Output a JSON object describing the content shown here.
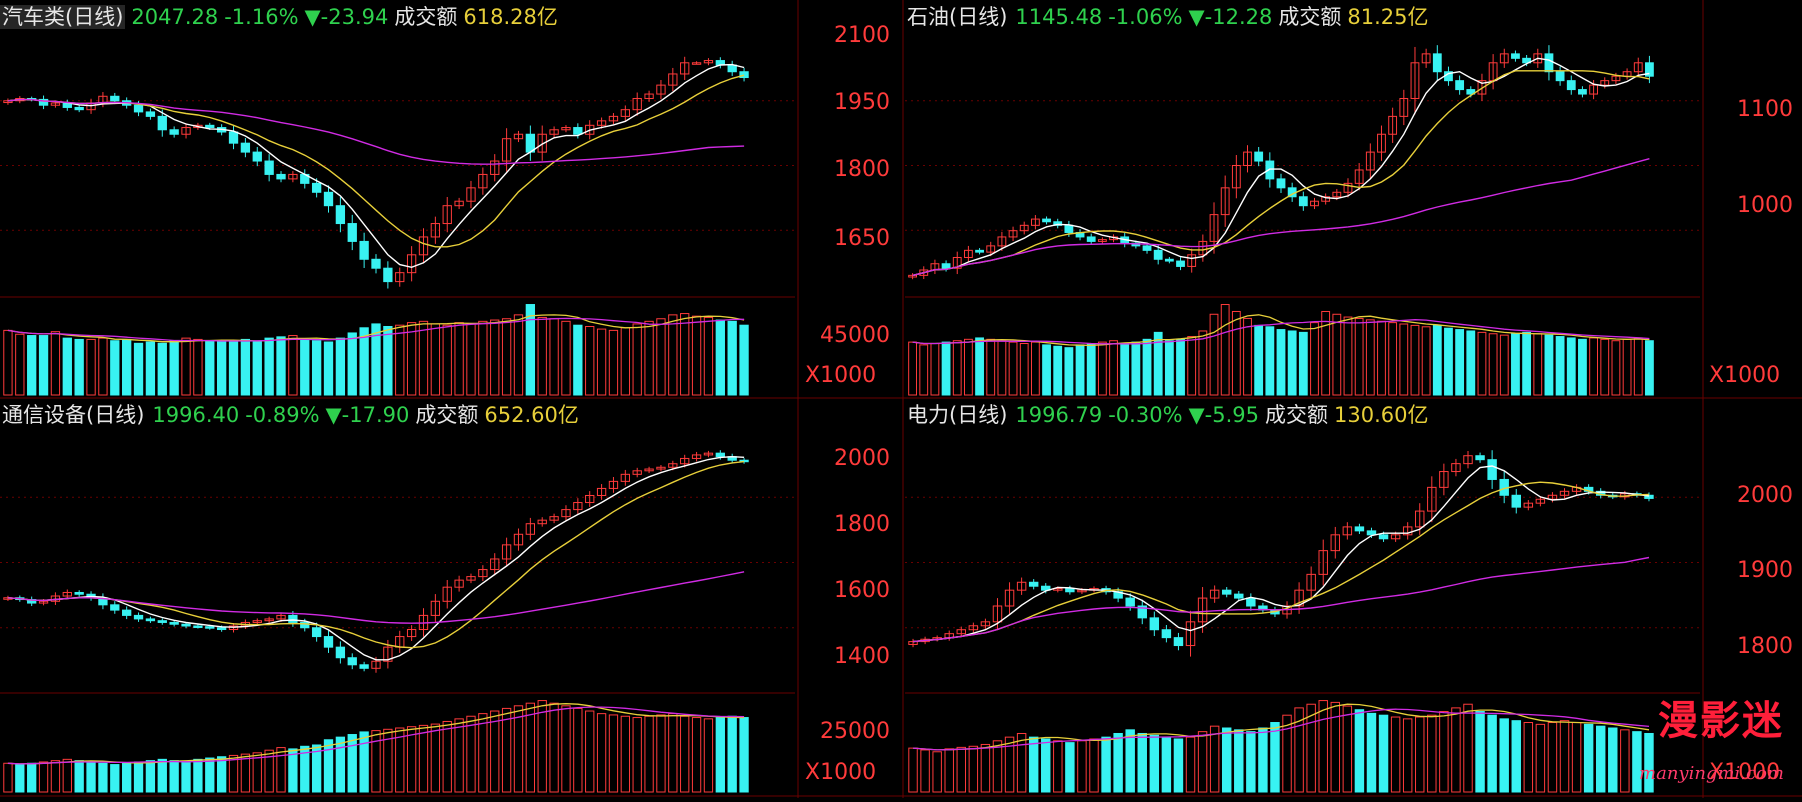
{
  "colors": {
    "up": "#ff3b3b",
    "down": "#38f2f2",
    "ma5": "#ffffff",
    "ma10": "#e7cf3a",
    "ma20": "#d02be3",
    "grid": "#6a0000",
    "axis": "#ff3b3b"
  },
  "watermark": {
    "text": "漫影迷",
    "url": "manyingmi.com"
  },
  "panels": [
    {
      "id": "auto",
      "header": {
        "name": "汽车类(日线)",
        "close": "2047.28",
        "pct": "-1.16%",
        "chg": "▼-23.94",
        "amt_label": "成交额",
        "amount": "618.28亿"
      },
      "price_axis": [
        "2100",
        "1950",
        "1800",
        "1650"
      ],
      "volume_axis": "45000",
      "volume_unit": "X1000",
      "chart_data": {
        "type": "candlestick",
        "ylim": [
          1560,
          2140
        ],
        "ma_periods": [
          5,
          10,
          20
        ],
        "closes": [
          1995,
          2000,
          1998,
          1985,
          1990,
          1980,
          1975,
          1990,
          2005,
          1995,
          1985,
          1970,
          1960,
          1930,
          1920,
          1935,
          1940,
          1935,
          1925,
          1900,
          1880,
          1860,
          1830,
          1820,
          1830,
          1810,
          1790,
          1760,
          1720,
          1680,
          1640,
          1620,
          1590,
          1610,
          1650,
          1690,
          1720,
          1760,
          1770,
          1800,
          1830,
          1860,
          1910,
          1920,
          1880,
          1920,
          1930,
          1935,
          1920,
          1940,
          1950,
          1960,
          1975,
          2000,
          2010,
          2030,
          2055,
          2080,
          2080,
          2085,
          2075,
          2060,
          2047
        ],
        "volumes": [
          50000,
          47000,
          46000,
          46000,
          49000,
          44000,
          43000,
          43000,
          44000,
          42000,
          43000,
          40000,
          41000,
          40000,
          42000,
          44000,
          43000,
          42000,
          41000,
          42000,
          43000,
          41000,
          44000,
          45000,
          46000,
          43000,
          42000,
          41000,
          44000,
          48000,
          52000,
          55000,
          53000,
          54000,
          56000,
          57000,
          55000,
          54000,
          56000,
          55000,
          57000,
          58000,
          59000,
          62000,
          70000,
          60000,
          59000,
          57000,
          54000,
          53000,
          51000,
          50000,
          52000,
          55000,
          57000,
          59000,
          62000,
          63000,
          61000,
          60000,
          58000,
          57000,
          54000
        ]
      }
    },
    {
      "id": "oil",
      "header": {
        "name": "石油(日线)",
        "close": "1145.48",
        "pct": "-1.06%",
        "chg": "▼-12.28",
        "amt_label": "成交额",
        "amount": "81.25亿"
      },
      "price_axis": [
        "1100",
        "1000"
      ],
      "volume_axis": "",
      "volume_unit": "X1000",
      "chart_data": {
        "type": "candlestick",
        "ylim": [
          900,
          1190
        ],
        "ma_periods": [
          5,
          10,
          20
        ],
        "closes": [
          922,
          928,
          935,
          930,
          942,
          950,
          948,
          955,
          965,
          972,
          978,
          985,
          982,
          978,
          970,
          965,
          960,
          962,
          965,
          958,
          955,
          950,
          940,
          938,
          932,
          945,
          960,
          990,
          1020,
          1045,
          1060,
          1050,
          1030,
          1020,
          1010,
          1000,
          1005,
          1010,
          1015,
          1025,
          1040,
          1060,
          1080,
          1100,
          1120,
          1160,
          1170,
          1150,
          1140,
          1130,
          1125,
          1140,
          1160,
          1170,
          1165,
          1160,
          1170,
          1150,
          1140,
          1130,
          1125,
          1135,
          1140,
          1145,
          1150,
          1160,
          1145
        ],
        "volumes": [
          38000,
          36000,
          37000,
          38000,
          39000,
          40000,
          41000,
          40000,
          39000,
          38000,
          37000,
          38000,
          36000,
          35000,
          34000,
          36000,
          37000,
          38000,
          39000,
          37000,
          38000,
          40000,
          45000,
          39000,
          40000,
          42000,
          46000,
          58000,
          65000,
          60000,
          55000,
          50000,
          49000,
          47000,
          46000,
          45000,
          52000,
          60000,
          58000,
          56000,
          55000,
          54000,
          53000,
          52000,
          51000,
          50000,
          49000,
          50000,
          48000,
          47000,
          46000,
          45000,
          44000,
          43000,
          44000,
          45000,
          44000,
          43000,
          42000,
          41000,
          40000,
          41000,
          40000,
          39000,
          40000,
          41000,
          39000
        ]
      }
    },
    {
      "id": "telecom",
      "header": {
        "name": "通信设备(日线)",
        "close": "1996.40",
        "pct": "-0.89%",
        "chg": "▼-17.90",
        "amt_label": "成交额",
        "amount": "652.60亿"
      },
      "price_axis": [
        "2000",
        "1800",
        "1600",
        "1400"
      ],
      "volume_axis": "25000",
      "volume_unit": "X1000",
      "chart_data": {
        "type": "candlestick",
        "ylim": [
          1340,
          2080
        ],
        "ma_periods": [
          5,
          10,
          20
        ],
        "closes": [
          1610,
          1605,
          1595,
          1600,
          1615,
          1625,
          1620,
          1610,
          1590,
          1575,
          1560,
          1550,
          1545,
          1540,
          1535,
          1530,
          1528,
          1525,
          1520,
          1530,
          1540,
          1545,
          1550,
          1560,
          1540,
          1525,
          1500,
          1470,
          1440,
          1420,
          1410,
          1430,
          1470,
          1500,
          1520,
          1560,
          1600,
          1640,
          1660,
          1670,
          1690,
          1720,
          1760,
          1790,
          1820,
          1830,
          1840,
          1860,
          1880,
          1900,
          1920,
          1940,
          1960,
          1970,
          1975,
          1980,
          1990,
          2005,
          2015,
          2020,
          2010,
          2000,
          1996
        ],
        "volumes": [
          11000,
          10500,
          11000,
          11500,
          12000,
          12500,
          12000,
          11500,
          11000,
          10500,
          11000,
          11500,
          12000,
          12500,
          12000,
          11800,
          12500,
          13000,
          13500,
          14000,
          14500,
          15000,
          16000,
          17000,
          16500,
          17500,
          18000,
          20000,
          21000,
          22000,
          23000,
          23500,
          24000,
          24500,
          25000,
          25500,
          26000,
          27000,
          28000,
          29000,
          30000,
          31000,
          32000,
          33000,
          34000,
          35000,
          34000,
          33000,
          32000,
          31000,
          30000,
          29500,
          29000,
          28500,
          29000,
          29500,
          30000,
          29000,
          28500,
          28000,
          28500,
          29000,
          28500
        ]
      }
    },
    {
      "id": "power",
      "header": {
        "name": "电力(日线)",
        "close": "1996.79",
        "pct": "-0.30%",
        "chg": "▼-5.95",
        "amt_label": "成交额",
        "amount": "130.60亿"
      },
      "price_axis": [
        "2000",
        "1900",
        "1800"
      ],
      "volume_axis": "",
      "volume_unit": "X1000",
      "chart_data": {
        "type": "candlestick",
        "ylim": [
          1750,
          2080
        ],
        "ma_periods": [
          5,
          10,
          20
        ],
        "closes": [
          1815,
          1818,
          1820,
          1825,
          1830,
          1835,
          1840,
          1860,
          1880,
          1890,
          1885,
          1880,
          1882,
          1878,
          1880,
          1882,
          1878,
          1870,
          1860,
          1845,
          1830,
          1820,
          1810,
          1840,
          1870,
          1880,
          1875,
          1870,
          1860,
          1855,
          1850,
          1860,
          1880,
          1900,
          1930,
          1950,
          1960,
          1955,
          1950,
          1945,
          1950,
          1960,
          1980,
          2010,
          2030,
          2040,
          2050,
          2045,
          2020,
          2000,
          1985,
          1990,
          1995,
          2000,
          2005,
          2010,
          2005,
          2000,
          1998,
          2002,
          2000,
          1996
        ],
        "volumes": [
          12000,
          11500,
          11000,
          11800,
          12200,
          12500,
          13000,
          14000,
          15000,
          16000,
          15000,
          14500,
          14000,
          13500,
          14000,
          14500,
          15000,
          16000,
          17000,
          16000,
          15500,
          15000,
          14500,
          15000,
          16500,
          18000,
          17500,
          17000,
          16500,
          17500,
          19000,
          21000,
          23000,
          24000,
          25000,
          24500,
          23500,
          22500,
          21500,
          21000,
          20500,
          20000,
          20500,
          21000,
          22000,
          23000,
          24000,
          22000,
          21000,
          20000,
          19500,
          19000,
          18500,
          19000,
          19500,
          19000,
          18500,
          18000,
          17500,
          17000,
          16500,
          16000
        ]
      }
    }
  ]
}
